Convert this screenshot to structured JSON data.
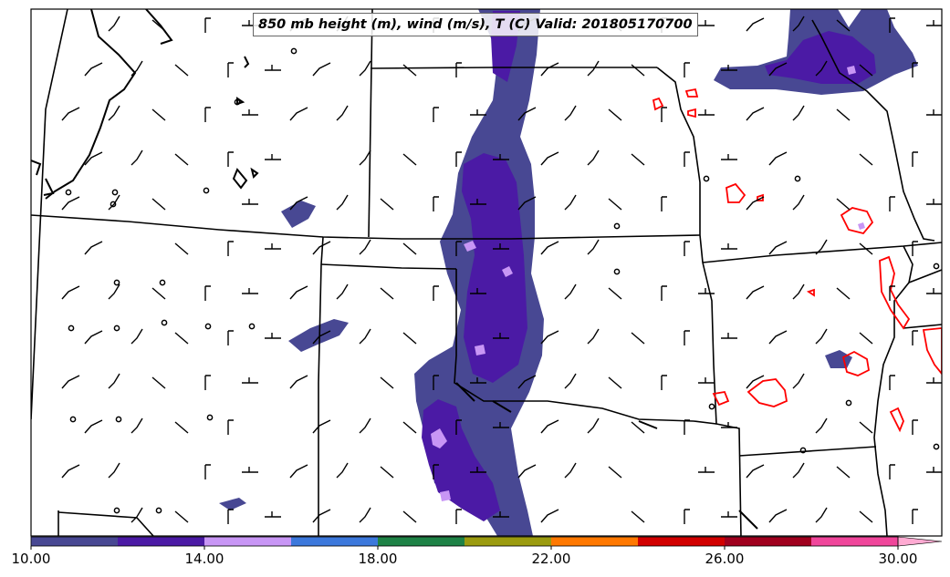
{
  "title": "850 mb height (m), wind (m/s), T (C) Valid: 201805170700",
  "colorbar": {
    "tick_labels": [
      "10.00",
      "14.00",
      "18.00",
      "22.00",
      "26.00",
      "30.00"
    ],
    "colors": [
      "#484893",
      "#4b1aa5",
      "#c896f5",
      "#3c78dc",
      "#1e8246",
      "#9b9b0f",
      "#ff7800",
      "#d20000",
      "#a0001e",
      "#f0469b",
      "#ffaad2"
    ],
    "extend": "max"
  },
  "legend_colors": {
    "temperature_contour": "#ff0000",
    "boundaries": "#000000",
    "wind_barbs": "#000000"
  },
  "layers": [
    "state-boundaries",
    "height-contours",
    "precipitation-shading",
    "temperature-contours",
    "wind-barbs",
    "calm-circles"
  ]
}
